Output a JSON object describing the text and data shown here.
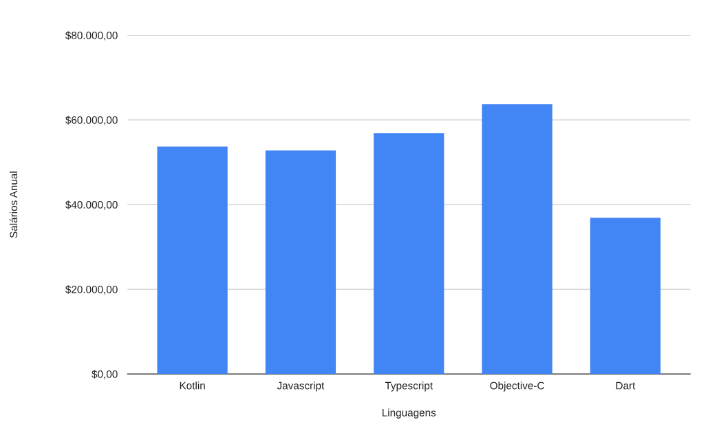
{
  "chart_data": {
    "type": "bar",
    "xlabel": "Linguagens",
    "ylabel": "Salários Anual",
    "categories": [
      "Kotlin",
      "Javascript",
      "Typescript",
      "Objective-C",
      "Dart"
    ],
    "values": [
      53700,
      52800,
      56900,
      63700,
      36900
    ],
    "color": "#4285f4",
    "ylim": [
      0,
      80000
    ],
    "yticks": [
      {
        "value": 0,
        "label": "$0,00"
      },
      {
        "value": 20000,
        "label": "$20.000,00"
      },
      {
        "value": 40000,
        "label": "$40.000,00"
      },
      {
        "value": 60000,
        "label": "$60.000,00"
      },
      {
        "value": 80000,
        "label": "$80.000,00"
      }
    ],
    "grid": "y",
    "legend": false
  }
}
